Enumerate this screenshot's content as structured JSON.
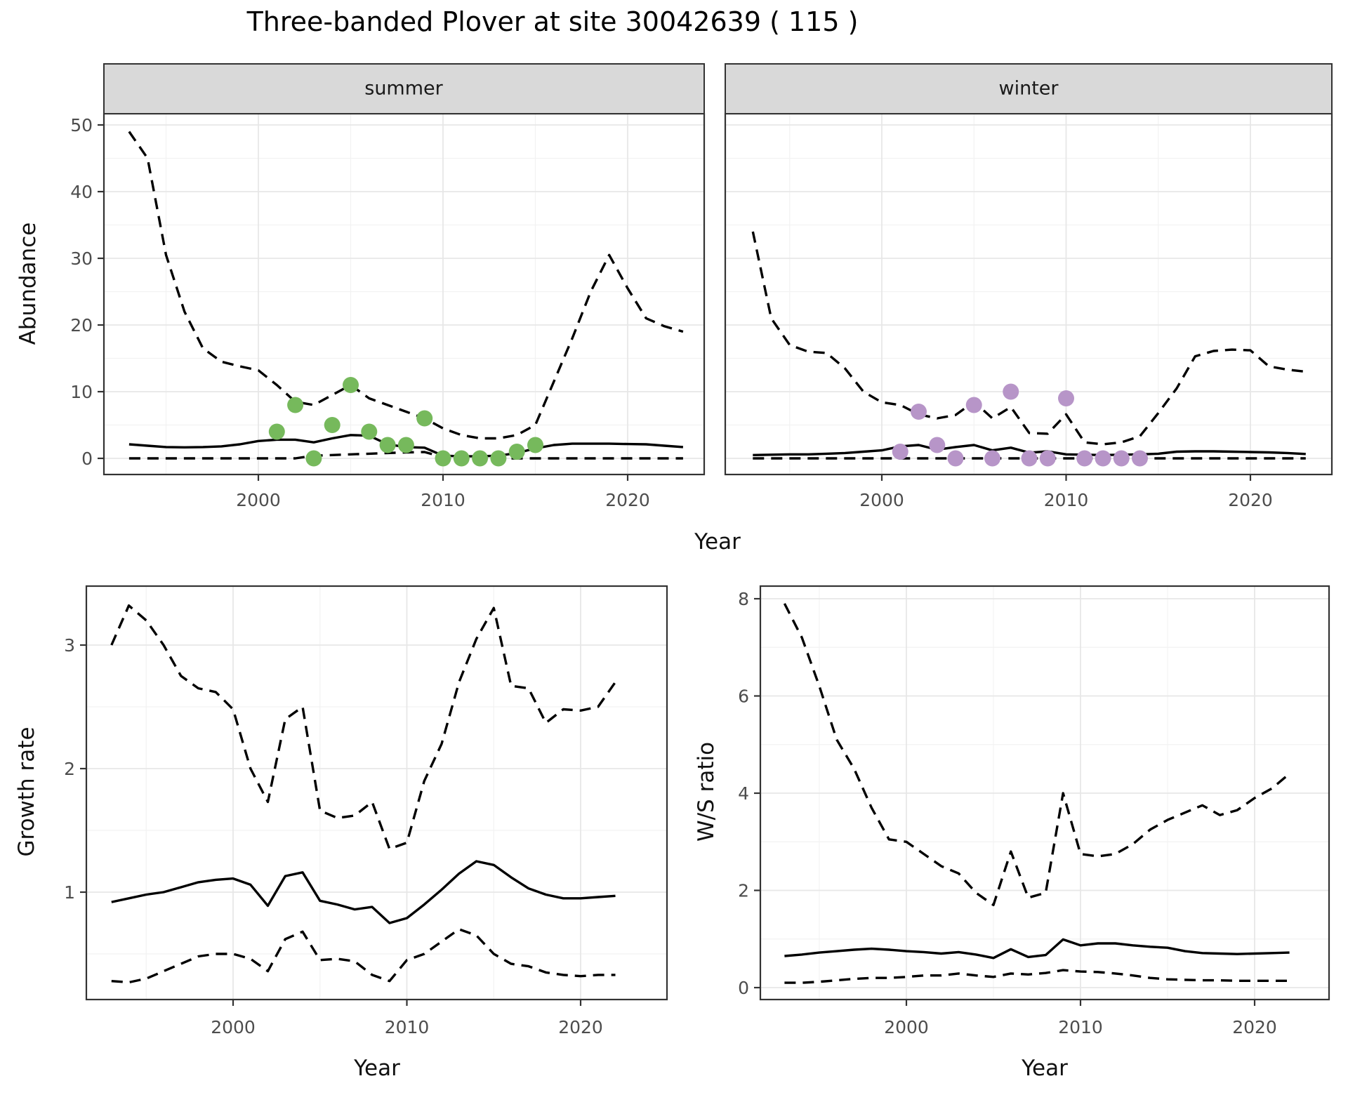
{
  "title": "Three-banded Plover at site 30042639 ( 115 )",
  "colors": {
    "summer_points": "#76b95c",
    "winter_points": "#b795c8",
    "line": "#000000",
    "strip_bg": "#d9d9d9",
    "panel_border": "#333333",
    "grid_major": "#e7e7e7",
    "grid_minor": "#f2f2f2",
    "tick_text": "#4d4d4d"
  },
  "chart_data": [
    {
      "id": "abundance",
      "type": "line",
      "xlabel": "Year",
      "ylabel": "Abundance",
      "xticks": [
        2000,
        2010,
        2020
      ],
      "yticks": [
        0,
        10,
        20,
        30,
        40,
        50
      ],
      "xlim": [
        1991.5,
        2024.5
      ],
      "ylim": [
        -2.5,
        51.5
      ],
      "grid": true,
      "legend": "none",
      "facets": [
        {
          "label": "summer",
          "x": [
            1993,
            1994,
            1995,
            1996,
            1997,
            1998,
            1999,
            2000,
            2001,
            2002,
            2003,
            2004,
            2005,
            2006,
            2007,
            2008,
            2009,
            2010,
            2011,
            2012,
            2013,
            2014,
            2015,
            2016,
            2017,
            2018,
            2019,
            2020,
            2021,
            2022,
            2023
          ],
          "series": [
            {
              "name": "upper_ci",
              "style": "dashed",
              "values": [
                49,
                45,
                30.5,
                22,
                16.5,
                14.5,
                13.8,
                13.2,
                11,
                8.5,
                8,
                9.5,
                11,
                9,
                8,
                7,
                6,
                4.5,
                3.5,
                3,
                3,
                3.5,
                5,
                11.5,
                18,
                25,
                30.5,
                25.5,
                21,
                19.8,
                19
              ]
            },
            {
              "name": "median",
              "style": "solid",
              "values": [
                2.1,
                1.9,
                1.7,
                1.65,
                1.7,
                1.8,
                2.1,
                2.6,
                2.8,
                2.8,
                2.4,
                3.0,
                3.5,
                3.4,
                2.1,
                1.7,
                1.6,
                0.4,
                0.3,
                0.3,
                0.4,
                0.8,
                1.5,
                2.0,
                2.2,
                2.2,
                2.2,
                2.15,
                2.1,
                1.9,
                1.7
              ]
            },
            {
              "name": "lower_ci",
              "style": "dashed",
              "values": [
                0,
                0,
                0,
                0,
                0,
                0,
                0,
                0,
                0,
                0,
                0.4,
                0.5,
                0.6,
                0.7,
                0.8,
                0.9,
                0.95,
                0.2,
                0,
                0,
                0,
                0,
                0,
                0,
                0,
                0,
                0,
                0,
                0,
                0,
                0
              ]
            }
          ],
          "points": {
            "name": "observed-counts",
            "color": "#76b95c",
            "x": [
              2001,
              2002,
              2003,
              2004,
              2005,
              2006,
              2007,
              2008,
              2009,
              2010,
              2011,
              2012,
              2013,
              2014,
              2015
            ],
            "y": [
              4,
              8,
              0,
              5,
              11,
              4,
              2,
              2,
              6,
              0,
              0,
              0,
              0,
              1,
              2
            ]
          }
        },
        {
          "label": "winter",
          "x": [
            1993,
            1994,
            1995,
            1996,
            1997,
            1998,
            1999,
            2000,
            2001,
            2002,
            2003,
            2004,
            2005,
            2006,
            2007,
            2008,
            2009,
            2010,
            2011,
            2012,
            2013,
            2014,
            2015,
            2016,
            2017,
            2018,
            2019,
            2020,
            2021,
            2022,
            2023
          ],
          "series": [
            {
              "name": "upper_ci",
              "style": "dashed",
              "values": [
                34,
                21,
                17,
                16,
                15.8,
                13.5,
                10,
                8.4,
                8,
                6.6,
                6,
                6.5,
                8.5,
                6,
                7.7,
                3.8,
                3.7,
                6.6,
                2.4,
                2.1,
                2.4,
                3.3,
                6.8,
                10.5,
                15.3,
                16.1,
                16.3,
                16.2,
                13.8,
                13.3,
                13
              ]
            },
            {
              "name": "median",
              "style": "solid",
              "values": [
                0.5,
                0.55,
                0.6,
                0.6,
                0.7,
                0.8,
                1.0,
                1.2,
                1.8,
                2.0,
                1.3,
                1.7,
                2.0,
                1.2,
                1.6,
                0.85,
                1.05,
                0.6,
                0.55,
                0.5,
                0.55,
                0.6,
                0.7,
                1.0,
                1.05,
                1.05,
                1.0,
                0.95,
                0.9,
                0.8,
                0.65
              ]
            },
            {
              "name": "lower_ci",
              "style": "dashed",
              "values": [
                0,
                0,
                0,
                0,
                0,
                0,
                0,
                0,
                0,
                0,
                0,
                0,
                0,
                0,
                0,
                0,
                0,
                0,
                0,
                0,
                0,
                0,
                0,
                0,
                0,
                0,
                0,
                0,
                0,
                0,
                0
              ]
            }
          ],
          "points": {
            "name": "observed-counts",
            "color": "#b795c8",
            "x": [
              2001,
              2002,
              2003,
              2004,
              2005,
              2006,
              2007,
              2008,
              2009,
              2010,
              2011,
              2012,
              2013,
              2014
            ],
            "y": [
              1,
              7,
              2,
              0,
              8,
              0,
              10,
              0,
              0,
              9,
              0,
              0,
              0,
              0
            ]
          }
        }
      ]
    },
    {
      "id": "growth_rate",
      "type": "line",
      "xlabel": "Year",
      "ylabel": "Growth rate",
      "xticks": [
        2000,
        2010,
        2020
      ],
      "yticks": [
        1,
        2,
        3
      ],
      "xlim": [
        1991.5,
        2025.0
      ],
      "ylim": [
        0.12,
        3.48
      ],
      "grid": true,
      "legend": "none",
      "x": [
        1993,
        1994,
        1995,
        1996,
        1997,
        1998,
        1999,
        2000,
        2001,
        2002,
        2003,
        2004,
        2005,
        2006,
        2007,
        2008,
        2009,
        2010,
        2011,
        2012,
        2013,
        2014,
        2015,
        2016,
        2017,
        2018,
        2019,
        2020,
        2021,
        2022
      ],
      "series": [
        {
          "name": "upper_ci",
          "style": "dashed",
          "values": [
            3.0,
            3.32,
            3.2,
            3.0,
            2.75,
            2.65,
            2.62,
            2.48,
            2.0,
            1.73,
            2.4,
            2.5,
            1.66,
            1.6,
            1.62,
            1.73,
            1.35,
            1.4,
            1.9,
            2.2,
            2.7,
            3.05,
            3.3,
            2.67,
            2.65,
            2.37,
            2.48,
            2.47,
            2.5,
            2.7
          ]
        },
        {
          "name": "median",
          "style": "solid",
          "values": [
            0.92,
            0.95,
            0.98,
            1.0,
            1.04,
            1.08,
            1.1,
            1.11,
            1.06,
            0.89,
            1.13,
            1.16,
            0.93,
            0.9,
            0.86,
            0.88,
            0.75,
            0.79,
            0.9,
            1.02,
            1.15,
            1.25,
            1.22,
            1.12,
            1.03,
            0.98,
            0.95,
            0.95,
            0.96,
            0.97
          ]
        },
        {
          "name": "lower_ci",
          "style": "dashed",
          "values": [
            0.28,
            0.27,
            0.3,
            0.36,
            0.42,
            0.48,
            0.5,
            0.5,
            0.46,
            0.36,
            0.62,
            0.68,
            0.45,
            0.46,
            0.44,
            0.33,
            0.28,
            0.45,
            0.5,
            0.6,
            0.7,
            0.65,
            0.5,
            0.42,
            0.4,
            0.35,
            0.33,
            0.32,
            0.33,
            0.33
          ]
        }
      ]
    },
    {
      "id": "ws_ratio",
      "type": "line",
      "xlabel": "Year",
      "ylabel": "W/S ratio",
      "xticks": [
        2000,
        2010,
        2020
      ],
      "yticks": [
        0,
        2,
        4,
        6,
        8
      ],
      "xlim": [
        1991.6,
        2024.3
      ],
      "ylim": [
        -0.25,
        8.26
      ],
      "grid": true,
      "legend": "none",
      "x": [
        1993,
        1994,
        1995,
        1996,
        1997,
        1998,
        1999,
        2000,
        2001,
        2002,
        2003,
        2004,
        2005,
        2006,
        2007,
        2008,
        2009,
        2010,
        2011,
        2012,
        2013,
        2014,
        2015,
        2016,
        2017,
        2018,
        2019,
        2020,
        2021,
        2022
      ],
      "series": [
        {
          "name": "upper_ci",
          "style": "dashed",
          "values": [
            7.9,
            7.2,
            6.2,
            5.1,
            4.5,
            3.7,
            3.05,
            3.0,
            2.75,
            2.5,
            2.35,
            1.95,
            1.7,
            2.8,
            1.85,
            1.95,
            4.0,
            2.75,
            2.7,
            2.75,
            2.95,
            3.25,
            3.45,
            3.6,
            3.75,
            3.55,
            3.65,
            3.9,
            4.1,
            4.4
          ]
        },
        {
          "name": "median",
          "style": "solid",
          "values": [
            0.65,
            0.68,
            0.72,
            0.75,
            0.78,
            0.8,
            0.78,
            0.75,
            0.73,
            0.7,
            0.73,
            0.68,
            0.61,
            0.79,
            0.63,
            0.67,
            0.99,
            0.87,
            0.91,
            0.91,
            0.87,
            0.84,
            0.82,
            0.75,
            0.71,
            0.7,
            0.69,
            0.7,
            0.71,
            0.72
          ]
        },
        {
          "name": "lower_ci",
          "style": "dashed",
          "values": [
            0.1,
            0.1,
            0.12,
            0.15,
            0.18,
            0.2,
            0.2,
            0.22,
            0.25,
            0.25,
            0.29,
            0.25,
            0.22,
            0.29,
            0.27,
            0.3,
            0.36,
            0.33,
            0.32,
            0.29,
            0.25,
            0.2,
            0.17,
            0.16,
            0.15,
            0.15,
            0.14,
            0.14,
            0.14,
            0.14
          ]
        }
      ]
    }
  ]
}
